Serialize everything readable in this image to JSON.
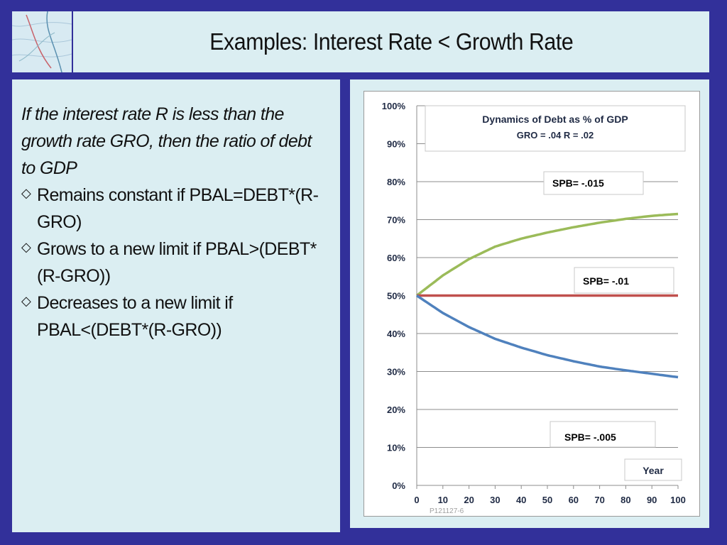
{
  "slide": {
    "title": "Examples: Interest Rate < Growth Rate",
    "intro": "If the interest rate R is less than the growth rate GRO, then the ratio of debt to GDP",
    "bullets": [
      {
        "label": "Remains constant if PBAL=DEBT*(R-GRO)"
      },
      {
        "label": "Grows to a new limit if PBAL>(DEBT*(R-GRO))"
      },
      {
        "label": "Decreases to a new limit if PBAL<(DEBT*(R-GRO))"
      }
    ]
  },
  "chart_data": {
    "type": "line",
    "title": "Dynamics of Debt as % of GDP",
    "subtitle": "GRO = .04 R = .02",
    "xlabel": "Year",
    "ylabel": "",
    "source_note": "P121127-6",
    "x_ticks": [
      0,
      10,
      20,
      30,
      40,
      50,
      60,
      70,
      80,
      90,
      100
    ],
    "y_ticks": [
      "0%",
      "10%",
      "20%",
      "30%",
      "40%",
      "50%",
      "60%",
      "70%",
      "80%",
      "90%",
      "100%"
    ],
    "xlim": [
      0,
      100
    ],
    "ylim": [
      0,
      100
    ],
    "grid": "horizontal",
    "x": [
      0,
      10,
      20,
      30,
      40,
      50,
      60,
      70,
      80,
      90,
      100
    ],
    "series": [
      {
        "name": "SPB= -.015",
        "color": "#9bbb59",
        "values": [
          50,
          55.3,
          59.6,
          62.9,
          65.0,
          66.6,
          68.0,
          69.2,
          70.2,
          71.0,
          71.5
        ]
      },
      {
        "name": "SPB= -.01",
        "color": "#c0504d",
        "values": [
          50,
          50,
          50,
          50,
          50,
          50,
          50,
          50,
          50,
          50,
          50
        ]
      },
      {
        "name": "SPB= -.005",
        "color": "#4f81bd",
        "values": [
          50,
          45.4,
          41.7,
          38.6,
          36.3,
          34.3,
          32.7,
          31.3,
          30.3,
          29.4,
          28.5
        ]
      }
    ]
  }
}
